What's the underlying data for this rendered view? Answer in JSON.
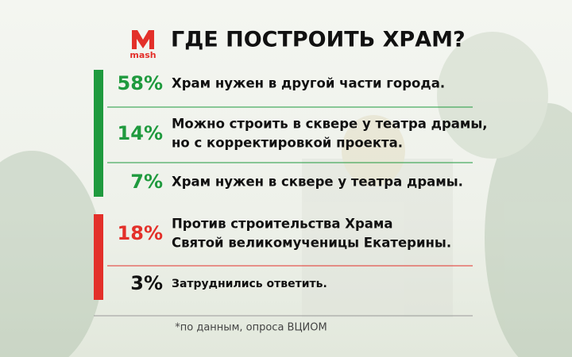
{
  "logo": {
    "name": "mash"
  },
  "header": {
    "title": "ГДЕ ПОСТРОИТЬ ХРАМ?"
  },
  "items": [
    {
      "percent": "58%",
      "lines": [
        "Храм нужен в другой части города."
      ],
      "color": "#1f9a3e"
    },
    {
      "percent": "14%",
      "lines": [
        "Можно строить в сквере у театра драмы,",
        "но с корректировкой проекта."
      ],
      "color": "#1f9a3e"
    },
    {
      "percent": "7%",
      "lines": [
        "Храм нужен в сквере у театра драмы."
      ],
      "color": "#1f9a3e"
    },
    {
      "percent": "18%",
      "lines": [
        "Против строительства Храма",
        "Святой великомученицы Екатерины."
      ],
      "color": "#e3302a"
    },
    {
      "percent": "3%",
      "lines": [
        "Затруднились ответить."
      ],
      "color": "#111111"
    }
  ],
  "footnote": "*по данным, опроса ВЦИОМ"
}
